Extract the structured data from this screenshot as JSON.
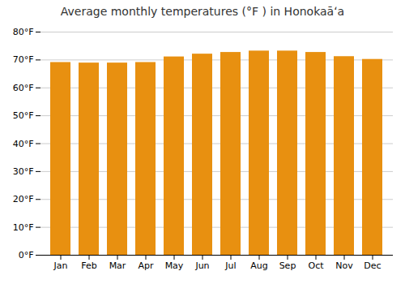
{
  "chart_data": {
    "type": "bar",
    "title": "Average monthly temperatures (°F ) in Honokaāʻa",
    "categories": [
      "Jan",
      "Feb",
      "Mar",
      "Apr",
      "May",
      "Jun",
      "Jul",
      "Aug",
      "Sep",
      "Oct",
      "Nov",
      "Dec"
    ],
    "values": [
      69.1,
      68.9,
      68.9,
      69.1,
      71.1,
      72.1,
      72.7,
      73.2,
      73.2,
      72.7,
      71.2,
      70.2
    ],
    "color": "#E89010",
    "ylim": [
      0,
      80
    ],
    "yticks": [
      {
        "value": 0,
        "label": "0°F"
      },
      {
        "value": 10,
        "label": "10°F"
      },
      {
        "value": 20,
        "label": "20°F"
      },
      {
        "value": 30,
        "label": "30°F"
      },
      {
        "value": 40,
        "label": "40°F"
      },
      {
        "value": 50,
        "label": "50°F"
      },
      {
        "value": 60,
        "label": "60°F"
      },
      {
        "value": 70,
        "label": "70°F"
      },
      {
        "value": 80,
        "label": "80°F"
      }
    ],
    "grid": true
  }
}
